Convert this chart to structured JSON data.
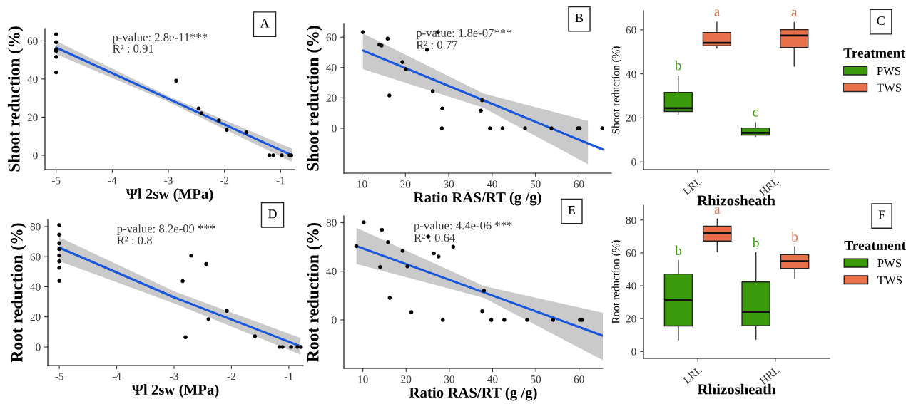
{
  "chart_data": [
    {
      "type": "scatter",
      "xlabel": "Ψl 2sw (MPa)",
      "ylabel": "Shoot reduction (%)",
      "annotations": [
        "A",
        "p-value: 2.8e-11***",
        "R² : 0.91"
      ],
      "xlim": [
        -5.2,
        -0.75
      ],
      "ylim": [
        -7.5,
        66.5
      ],
      "xticks": [
        -5,
        -4,
        -3,
        -2,
        -1
      ],
      "yticks": [
        0,
        20,
        40,
        60
      ],
      "grid": false,
      "series": [
        {
          "color": "#000000",
          "marker": "circle",
          "x": [
            -5,
            -5,
            -5,
            -5,
            -5,
            -5,
            -2.86,
            -2.46,
            -2.41,
            -2.1,
            -1.96,
            -1.61,
            -1.2,
            -1.13,
            -0.98,
            -0.84,
            -0.81
          ],
          "values": [
            63.4,
            59.3,
            55.5,
            54.7,
            51.6,
            43.5,
            39.1,
            24.5,
            22,
            18.3,
            13.3,
            12,
            0,
            0,
            0,
            0,
            0
          ]
        },
        {
          "type": "line",
          "color": "#1a56db",
          "line_style": "solid",
          "x": [
            -5,
            -3,
            -0.8
          ],
          "values": [
            56.5,
            29.6,
            0
          ],
          "lower": [
            53,
            28,
            -3.5
          ],
          "upper": [
            60,
            31,
            3.5
          ]
        }
      ]
    },
    {
      "type": "scatter",
      "xlabel": "Ratio RAS/RT (g /g)",
      "ylabel": "Shoot reduction (%)",
      "annotations": [
        "B",
        "p-value: 1.8e-07***",
        "R² : 0.77"
      ],
      "xlim": [
        5.8,
        67.5
      ],
      "ylim": [
        -29.6,
        69
      ],
      "xticks": [
        10,
        20,
        30,
        40,
        50,
        60
      ],
      "yticks": [
        0,
        20,
        40,
        60
      ],
      "grid": false,
      "series": [
        {
          "color": "#000000",
          "marker": "circle",
          "x": [
            10.2,
            14.0,
            14.5,
            15.9,
            16.3,
            19.3,
            20.1,
            25.0,
            26.3,
            27.5,
            28.5,
            28.4,
            37.4,
            37.7,
            39.5,
            42.4,
            47.6,
            53.7,
            59.8,
            60.2,
            65.4
          ],
          "values": [
            63.3,
            55,
            54.4,
            59,
            21.6,
            43.6,
            38.9,
            51.7,
            24.4,
            63.3,
            13,
            0,
            11.6,
            18.4,
            0,
            0,
            0,
            0,
            0,
            0,
            0
          ]
        },
        {
          "type": "line",
          "color": "#1a56db",
          "line_style": "solid",
          "x": [
            10.2,
            38,
            62.1,
            65.5
          ],
          "values": [
            51.2,
            18.4,
            -10,
            -14
          ],
          "lower": [
            39,
            13.5,
            -23.7,
            null
          ],
          "upper": [
            62.4,
            22.9,
            4.8,
            null
          ]
        }
      ]
    },
    {
      "type": "box",
      "xlabel": "Rhizosheath",
      "ylabel": "Shoot reduction (%)",
      "legend_title": "Treatment",
      "legend": "right",
      "annotations": [
        "C"
      ],
      "categories": [
        "LRL",
        "HRL"
      ],
      "ylim": [
        -3.5,
        68.7
      ],
      "yticks": [
        0,
        20,
        40,
        60
      ],
      "grid": false,
      "series": [
        {
          "name": "PWS",
          "color": "#3b9a0c",
          "value_labels": [
            "b",
            "c"
          ],
          "boxes": [
            {
              "low": 21.8,
              "q1": 22.9,
              "median": 24.4,
              "q3": 31.6,
              "high": 38.9
            },
            {
              "low": 11.5,
              "q1": 12.2,
              "median": 13.2,
              "q3": 15.4,
              "high": 17.8
            }
          ]
        },
        {
          "name": "TWS",
          "color": "#e8704a",
          "value_labels": [
            "a",
            "a"
          ],
          "boxes": [
            {
              "low": 51.7,
              "q1": 52.8,
              "median": 54.1,
              "q3": 58.8,
              "high": 63.5
            },
            {
              "low": 43.5,
              "q1": 52,
              "median": 57.4,
              "q3": 60.1,
              "high": 63.3
            }
          ]
        }
      ]
    },
    {
      "type": "scatter",
      "xlabel": "Ψl 2sw (MPa)",
      "ylabel": "Root reduction (%)",
      "annotations": [
        "D",
        "p-value: 8.2e-09 ***",
        "R² : 0.8"
      ],
      "xlim": [
        -5.2,
        -0.75
      ],
      "ylim": [
        -12.3,
        84.7
      ],
      "xticks": [
        -5,
        -4,
        -3,
        -2,
        -1
      ],
      "yticks": [
        0,
        20,
        40,
        60,
        80
      ],
      "grid": false,
      "series": [
        {
          "color": "#000000",
          "marker": "circle",
          "x": [
            -5,
            -5,
            -5,
            -5,
            -5,
            -5,
            -5,
            -5,
            -2.7,
            -2.44,
            -2.85,
            -2.8,
            -2.4,
            -2.08,
            -1.59,
            -1.16,
            -1.11,
            -0.96,
            -0.85,
            -0.79
          ],
          "values": [
            80.9,
            74.6,
            68.9,
            65.1,
            60.8,
            56.9,
            52.6,
            43.9,
            60.7,
            55.1,
            43.8,
            6.5,
            18.5,
            24,
            7.1,
            0,
            0,
            0,
            0,
            0
          ]
        },
        {
          "type": "line",
          "color": "#1a56db",
          "line_style": "solid",
          "x": [
            -5,
            -3,
            -0.8
          ],
          "values": [
            66,
            33,
            0.5
          ],
          "lower": [
            57,
            29,
            -5
          ],
          "upper": [
            73,
            37,
            6
          ]
        }
      ]
    },
    {
      "type": "scatter",
      "xlabel": "Ratio RAS/RT (g /g)",
      "ylabel": "Root reduction (%)",
      "annotations": [
        "E",
        "p-value: 4.4e-06 ***",
        "R² : 0.64"
      ],
      "xlim": [
        5.6,
        65.5
      ],
      "ylim": [
        -39.8,
        85.5
      ],
      "xticks": [
        10,
        20,
        30,
        40,
        50,
        60
      ],
      "yticks": [
        0,
        40,
        80
      ],
      "grid": false,
      "series": [
        {
          "color": "#000000",
          "marker": "circle",
          "x": [
            8.5,
            10.2,
            14.4,
            14.0,
            15.8,
            16.2,
            19.2,
            20.3,
            21.2,
            25.1,
            26.4,
            27.5,
            28.5,
            30.9,
            37.6,
            38.0,
            39.7,
            42.7,
            48.0,
            54.0,
            60.2,
            60.7
          ],
          "values": [
            60.7,
            80.2,
            74.1,
            43.5,
            64,
            18.1,
            56.8,
            44,
            6.4,
            68.5,
            54.8,
            52.1,
            0,
            60.1,
            7.2,
            24,
            0,
            0,
            0,
            0,
            0,
            0
          ]
        },
        {
          "type": "line",
          "color": "#1a56db",
          "line_style": "solid",
          "x": [
            8.5,
            38,
            65.5
          ],
          "values": [
            60.7,
            22.6,
            -13
          ],
          "lower": [
            46,
            18.1,
            -33
          ],
          "upper": [
            75.7,
            27.9,
            5.9
          ]
        }
      ]
    },
    {
      "type": "box",
      "xlabel": "Rhizosheath",
      "ylabel": "Root reduction (%)",
      "legend_title": "Treatment",
      "legend": "right",
      "annotations": [
        "F"
      ],
      "categories": [
        "LRL",
        "HRL"
      ],
      "ylim": [
        -4.2,
        89
      ],
      "yticks": [
        0,
        20,
        40,
        60,
        80
      ],
      "grid": false,
      "series": [
        {
          "name": "PWS",
          "color": "#3b9a0c",
          "value_labels": [
            "b",
            "b"
          ],
          "boxes": [
            {
              "low": 7,
              "q1": 15.5,
              "median": 31.2,
              "q3": 47.1,
              "high": 55.4
            },
            {
              "low": 7.4,
              "q1": 15.7,
              "median": 24.1,
              "q3": 42.3,
              "high": 60.2
            }
          ]
        },
        {
          "name": "TWS",
          "color": "#e8704a",
          "value_labels": [
            "a",
            "b"
          ],
          "boxes": [
            {
              "low": 60.8,
              "q1": 67.2,
              "median": 71.9,
              "q3": 76.2,
              "high": 80.6
            },
            {
              "low": 44.3,
              "q1": 50.5,
              "median": 54.9,
              "q3": 59,
              "high": 63.8
            }
          ]
        }
      ]
    }
  ]
}
